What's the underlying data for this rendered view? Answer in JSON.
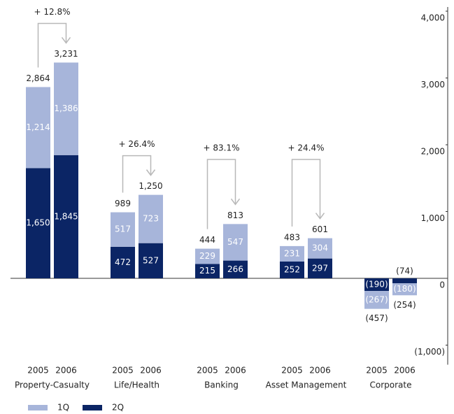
{
  "chart_data": {
    "type": "stacked-bar",
    "groups": [
      "Property-Casualty",
      "Life/Health",
      "Banking",
      "Asset Management",
      "Corporate"
    ],
    "categories": [
      "2005",
      "2006",
      "2005",
      "2006",
      "2005",
      "2006",
      "2005",
      "2006",
      "2005",
      "2006"
    ],
    "series": [
      {
        "name": "2Q",
        "color": "#0b2565",
        "values": [
          1650,
          1845,
          472,
          527,
          215,
          266,
          252,
          297,
          -190,
          -74
        ],
        "value_labels": [
          "1,650",
          "1,845",
          "472",
          "527",
          "215",
          "266",
          "252",
          "297",
          "(190)",
          "(74)"
        ]
      },
      {
        "name": "1Q",
        "color": "#a7b5da",
        "values": [
          1214,
          1386,
          517,
          723,
          229,
          547,
          231,
          304,
          -267,
          -180
        ],
        "value_labels": [
          "1,214",
          "1,386",
          "517",
          "723",
          "229",
          "547",
          "231",
          "304",
          "(267)",
          "(180)"
        ]
      }
    ],
    "totals": [
      2864,
      3231,
      989,
      1250,
      444,
      813,
      483,
      601,
      -457,
      -254
    ],
    "total_labels": [
      "2,864",
      "3,231",
      "989",
      "1,250",
      "444",
      "813",
      "483",
      "601",
      "(457)",
      "(254)"
    ],
    "annotations": [
      "+ 12.8%",
      "+ 26.4%",
      "+ 83.1%",
      "+ 24.4%"
    ],
    "ylim": [
      -1000,
      4000
    ],
    "yticks": [
      {
        "value": -1000,
        "label": "(1,000)"
      },
      0,
      {
        "value": 1000,
        "label": "1,000"
      },
      {
        "value": 2000,
        "label": "2,000"
      },
      {
        "value": 3000,
        "label": "3,000"
      },
      {
        "value": 4000,
        "label": "4,000"
      }
    ],
    "legend": "bottom-left"
  }
}
